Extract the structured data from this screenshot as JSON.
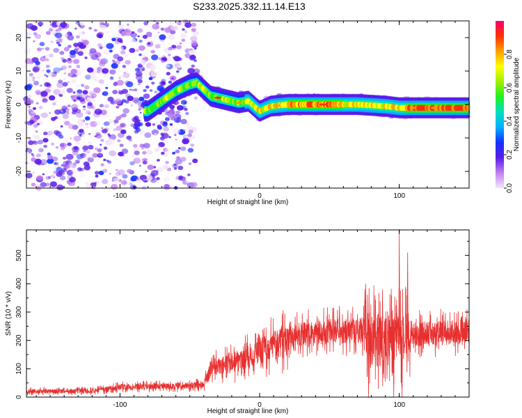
{
  "title": "S233.2025.332.11.14.E13",
  "chart_data": [
    {
      "type": "heatmap",
      "xlabel": "Height of straight line (km)",
      "ylabel": "Frequency (Hz)",
      "xlim": [
        -167,
        150
      ],
      "ylim": [
        -25,
        25
      ],
      "xticks": [
        -100,
        0,
        100
      ],
      "yticks": [
        -20,
        -10,
        0,
        10,
        20
      ],
      "colorbar": {
        "label": "Normalized spectral amplitude",
        "range": [
          0,
          1
        ],
        "ticks": [
          0.0,
          0.2,
          0.4,
          0.6,
          0.8
        ],
        "colors": [
          "#f4e6fb",
          "#c080f0",
          "#5a1ce8",
          "#1530ff",
          "#00b0ff",
          "#00e0c0",
          "#20f020",
          "#a0f000",
          "#ffff00",
          "#ffa000",
          "#ff3000",
          "#ff0070"
        ]
      },
      "ridge": [
        {
          "x": -80,
          "y": -2
        },
        {
          "x": -70,
          "y": 1
        },
        {
          "x": -60,
          "y": 4
        },
        {
          "x": -50,
          "y": 6
        },
        {
          "x": -45,
          "y": 6.5
        },
        {
          "x": -40,
          "y": 4.5
        },
        {
          "x": -35,
          "y": 2.5
        },
        {
          "x": -25,
          "y": 1.5
        },
        {
          "x": -15,
          "y": 0.5
        },
        {
          "x": -8,
          "y": 1
        },
        {
          "x": 0,
          "y": -2
        },
        {
          "x": 8,
          "y": -0.5
        },
        {
          "x": 20,
          "y": 0
        },
        {
          "x": 50,
          "y": 0
        },
        {
          "x": 70,
          "y": 0
        },
        {
          "x": 90,
          "y": -0.5
        },
        {
          "x": 100,
          "y": -1
        },
        {
          "x": 120,
          "y": -1
        },
        {
          "x": 150,
          "y": -1
        }
      ]
    },
    {
      "type": "line",
      "xlabel": "Height of straight line (km)",
      "ylabel": "SNR (10 * v/v)",
      "xlim": [
        -167,
        150
      ],
      "ylim": [
        0,
        590
      ],
      "xticks": [
        -100,
        0,
        100
      ],
      "yticks": [
        0,
        100,
        200,
        300,
        400,
        500
      ],
      "color": "#e83030",
      "trend": [
        {
          "x": -167,
          "y": 20
        },
        {
          "x": -120,
          "y": 22
        },
        {
          "x": -100,
          "y": 35
        },
        {
          "x": -50,
          "y": 40
        },
        {
          "x": -40,
          "y": 45
        },
        {
          "x": -35,
          "y": 100
        },
        {
          "x": -20,
          "y": 120
        },
        {
          "x": -5,
          "y": 150
        },
        {
          "x": 10,
          "y": 180
        },
        {
          "x": 25,
          "y": 215
        },
        {
          "x": 40,
          "y": 230
        },
        {
          "x": 75,
          "y": 235
        },
        {
          "x": 78,
          "y": 200
        },
        {
          "x": 105,
          "y": 220
        },
        {
          "x": 150,
          "y": 230
        }
      ],
      "peaks": [
        {
          "x": 76,
          "y": 400
        },
        {
          "x": 78,
          "y": 0
        },
        {
          "x": 88,
          "y": 380
        },
        {
          "x": 96,
          "y": 0
        },
        {
          "x": 100,
          "y": 590
        },
        {
          "x": 102,
          "y": 0
        },
        {
          "x": 106,
          "y": 510
        }
      ]
    }
  ]
}
